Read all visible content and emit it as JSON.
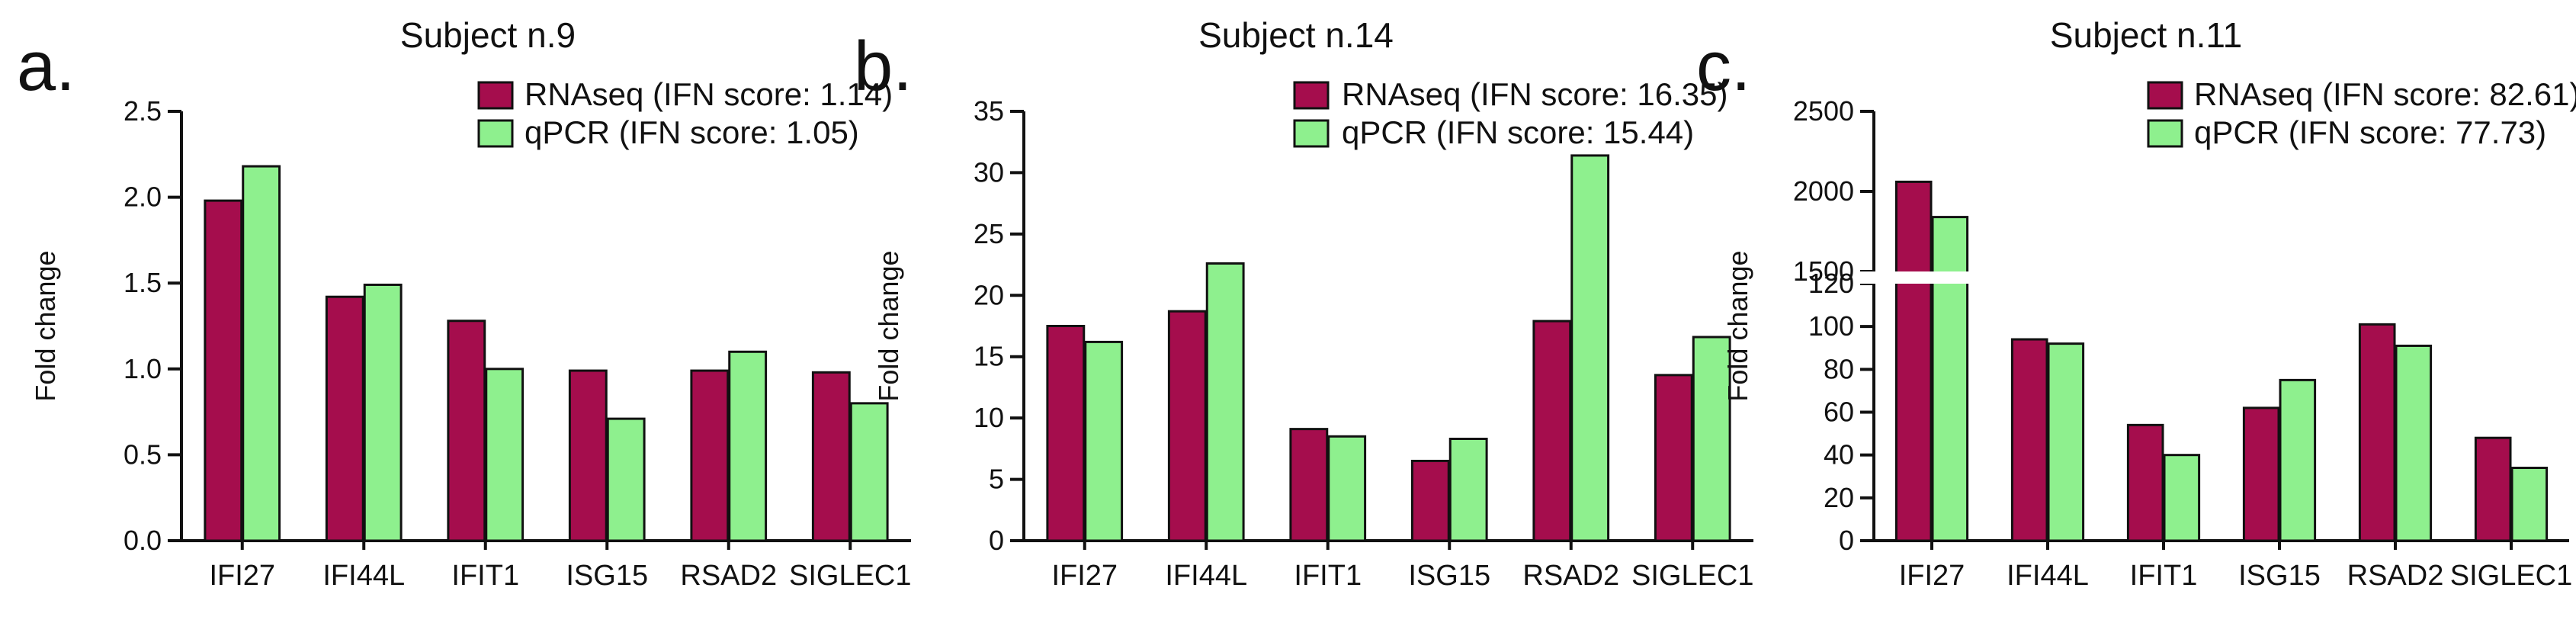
{
  "colors": {
    "rnaseq": "#a50d4d",
    "qpcr": "#8ef08e"
  },
  "chart_data": [
    {
      "type": "bar",
      "panel_label": "a.",
      "title": "Subject n.9",
      "ylabel": "Fold change",
      "ylim": [
        0,
        2.5
      ],
      "yticks": [
        "0.0",
        "0.5",
        "1.0",
        "1.5",
        "2.0",
        "2.5"
      ],
      "categories": [
        "IFI27",
        "IFI44L",
        "IFIT1",
        "ISG15",
        "RSAD2",
        "SIGLEC1"
      ],
      "series": [
        {
          "name": "RNAseq (IFN score: 1.14)",
          "values": [
            1.98,
            1.42,
            1.28,
            0.99,
            0.99,
            0.98
          ]
        },
        {
          "name": "qPCR (IFN score: 1.05)",
          "values": [
            2.18,
            1.49,
            1.0,
            0.71,
            1.1,
            0.8
          ]
        }
      ]
    },
    {
      "type": "bar",
      "panel_label": "b.",
      "title": "Subject n.14",
      "ylabel": "Fold change",
      "ylim": [
        0,
        35
      ],
      "yticks": [
        "0",
        "5",
        "10",
        "15",
        "20",
        "25",
        "30",
        "35"
      ],
      "categories": [
        "IFI27",
        "IFI44L",
        "IFIT1",
        "ISG15",
        "RSAD2",
        "SIGLEC1"
      ],
      "series": [
        {
          "name": "RNAseq (IFN score: 16.35)",
          "values": [
            17.5,
            18.7,
            9.1,
            6.5,
            17.9,
            13.5
          ]
        },
        {
          "name": "qPCR (IFN score: 15.44)",
          "values": [
            16.2,
            22.6,
            8.5,
            8.3,
            31.4,
            16.6
          ]
        }
      ]
    },
    {
      "type": "bar",
      "panel_label": "c.",
      "title": "Subject n.11",
      "ylabel": "Fold change",
      "ylim": [
        0,
        2500
      ],
      "axis_break": [
        120,
        1500
      ],
      "yticks_lower": [
        "0",
        "20",
        "40",
        "60",
        "80",
        "100",
        "120"
      ],
      "yticks_upper": [
        "1500",
        "2000",
        "2500"
      ],
      "categories": [
        "IFI27",
        "IFI44L",
        "IFIT1",
        "ISG15",
        "RSAD2",
        "SIGLEC1"
      ],
      "series": [
        {
          "name": "RNAseq (IFN score: 82.61)",
          "values": [
            2060,
            94,
            54,
            62,
            101,
            48
          ]
        },
        {
          "name": "qPCR (IFN score: 77.73)",
          "values": [
            1840,
            92,
            40,
            75,
            91,
            34
          ]
        }
      ]
    }
  ]
}
